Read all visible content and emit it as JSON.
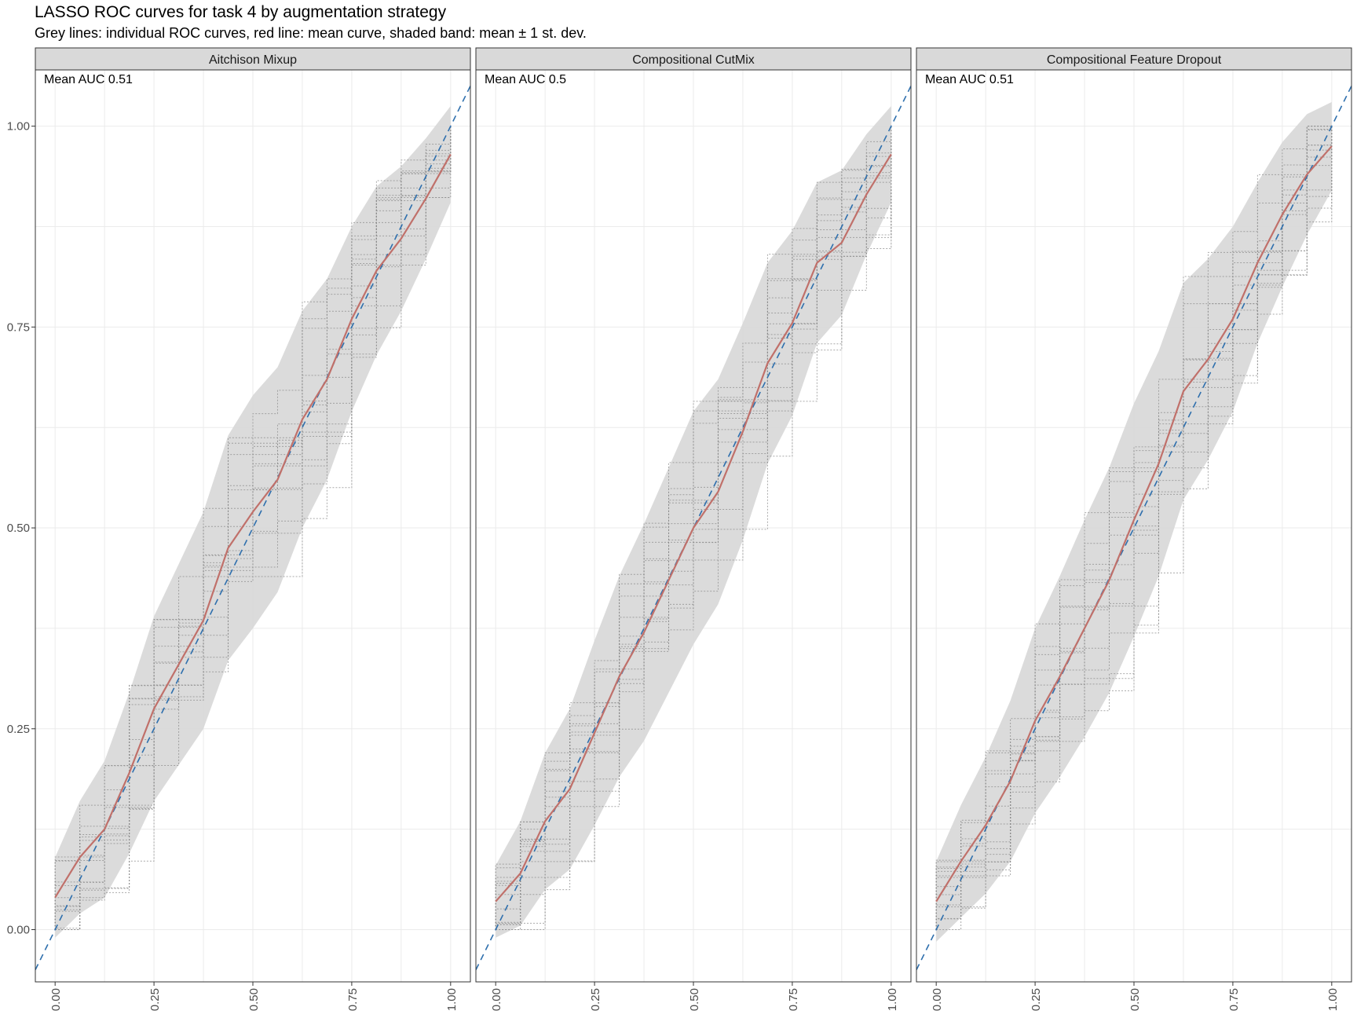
{
  "title": "LASSO ROC curves for task 4 by augmentation strategy",
  "subtitle": "Grey lines: individual ROC curves, red line: mean curve, shaded band: mean ± 1 st. dev.",
  "colors": {
    "band": "#d9d9d9",
    "mean_line": "#c0706a",
    "diagonal": "#2e6fad",
    "individual": "#8c8c8c",
    "strip_bg": "#d9d9d9",
    "grid": "#ebebeb"
  },
  "chart_data": {
    "type": "line",
    "xlim": [
      -0.05,
      1.05
    ],
    "ylim": [
      -0.065,
      1.07
    ],
    "x_ticks": [
      "0.00",
      "0.25",
      "0.50",
      "0.75",
      "1.00"
    ],
    "y_ticks": [
      "0.00",
      "0.25",
      "0.50",
      "0.75",
      "1.00"
    ],
    "reference_line": "y = x (dashed)",
    "panels": [
      {
        "name": "Aitchison Mixup",
        "auc_label": "Mean AUC 0.51",
        "x": [
          0,
          0.0625,
          0.125,
          0.1875,
          0.25,
          0.3125,
          0.375,
          0.4375,
          0.5,
          0.5625,
          0.625,
          0.6875,
          0.75,
          0.8125,
          0.875,
          0.9375,
          1.0
        ],
        "mean": [
          0.04,
          0.09,
          0.125,
          0.195,
          0.275,
          0.33,
          0.385,
          0.475,
          0.52,
          0.56,
          0.635,
          0.685,
          0.76,
          0.82,
          0.86,
          0.91,
          0.965
        ],
        "sd": [
          0.05,
          0.07,
          0.085,
          0.1,
          0.115,
          0.125,
          0.135,
          0.14,
          0.145,
          0.14,
          0.135,
          0.125,
          0.115,
          0.105,
          0.09,
          0.075,
          0.06
        ]
      },
      {
        "name": "Compositional CutMix",
        "auc_label": "Mean AUC 0.5",
        "x": [
          0,
          0.0625,
          0.125,
          0.1875,
          0.25,
          0.3125,
          0.375,
          0.4375,
          0.5,
          0.5625,
          0.625,
          0.6875,
          0.75,
          0.8125,
          0.875,
          0.9375,
          1.0
        ],
        "mean": [
          0.035,
          0.07,
          0.135,
          0.175,
          0.245,
          0.315,
          0.37,
          0.435,
          0.5,
          0.545,
          0.62,
          0.705,
          0.755,
          0.83,
          0.855,
          0.915,
          0.965
        ],
        "sd": [
          0.045,
          0.065,
          0.085,
          0.1,
          0.115,
          0.125,
          0.135,
          0.14,
          0.145,
          0.14,
          0.135,
          0.125,
          0.115,
          0.1,
          0.09,
          0.075,
          0.06
        ]
      },
      {
        "name": "Compositional Feature Dropout",
        "auc_label": "Mean AUC 0.51",
        "x": [
          0,
          0.0625,
          0.125,
          0.1875,
          0.25,
          0.3125,
          0.375,
          0.4375,
          0.5,
          0.5625,
          0.625,
          0.6875,
          0.75,
          0.8125,
          0.875,
          0.9375,
          1.0
        ],
        "mean": [
          0.035,
          0.085,
          0.13,
          0.185,
          0.26,
          0.315,
          0.375,
          0.435,
          0.51,
          0.58,
          0.67,
          0.71,
          0.76,
          0.83,
          0.89,
          0.94,
          0.975
        ],
        "sd": [
          0.05,
          0.07,
          0.085,
          0.1,
          0.115,
          0.125,
          0.135,
          0.14,
          0.145,
          0.14,
          0.135,
          0.125,
          0.115,
          0.1,
          0.09,
          0.075,
          0.055
        ]
      }
    ]
  }
}
